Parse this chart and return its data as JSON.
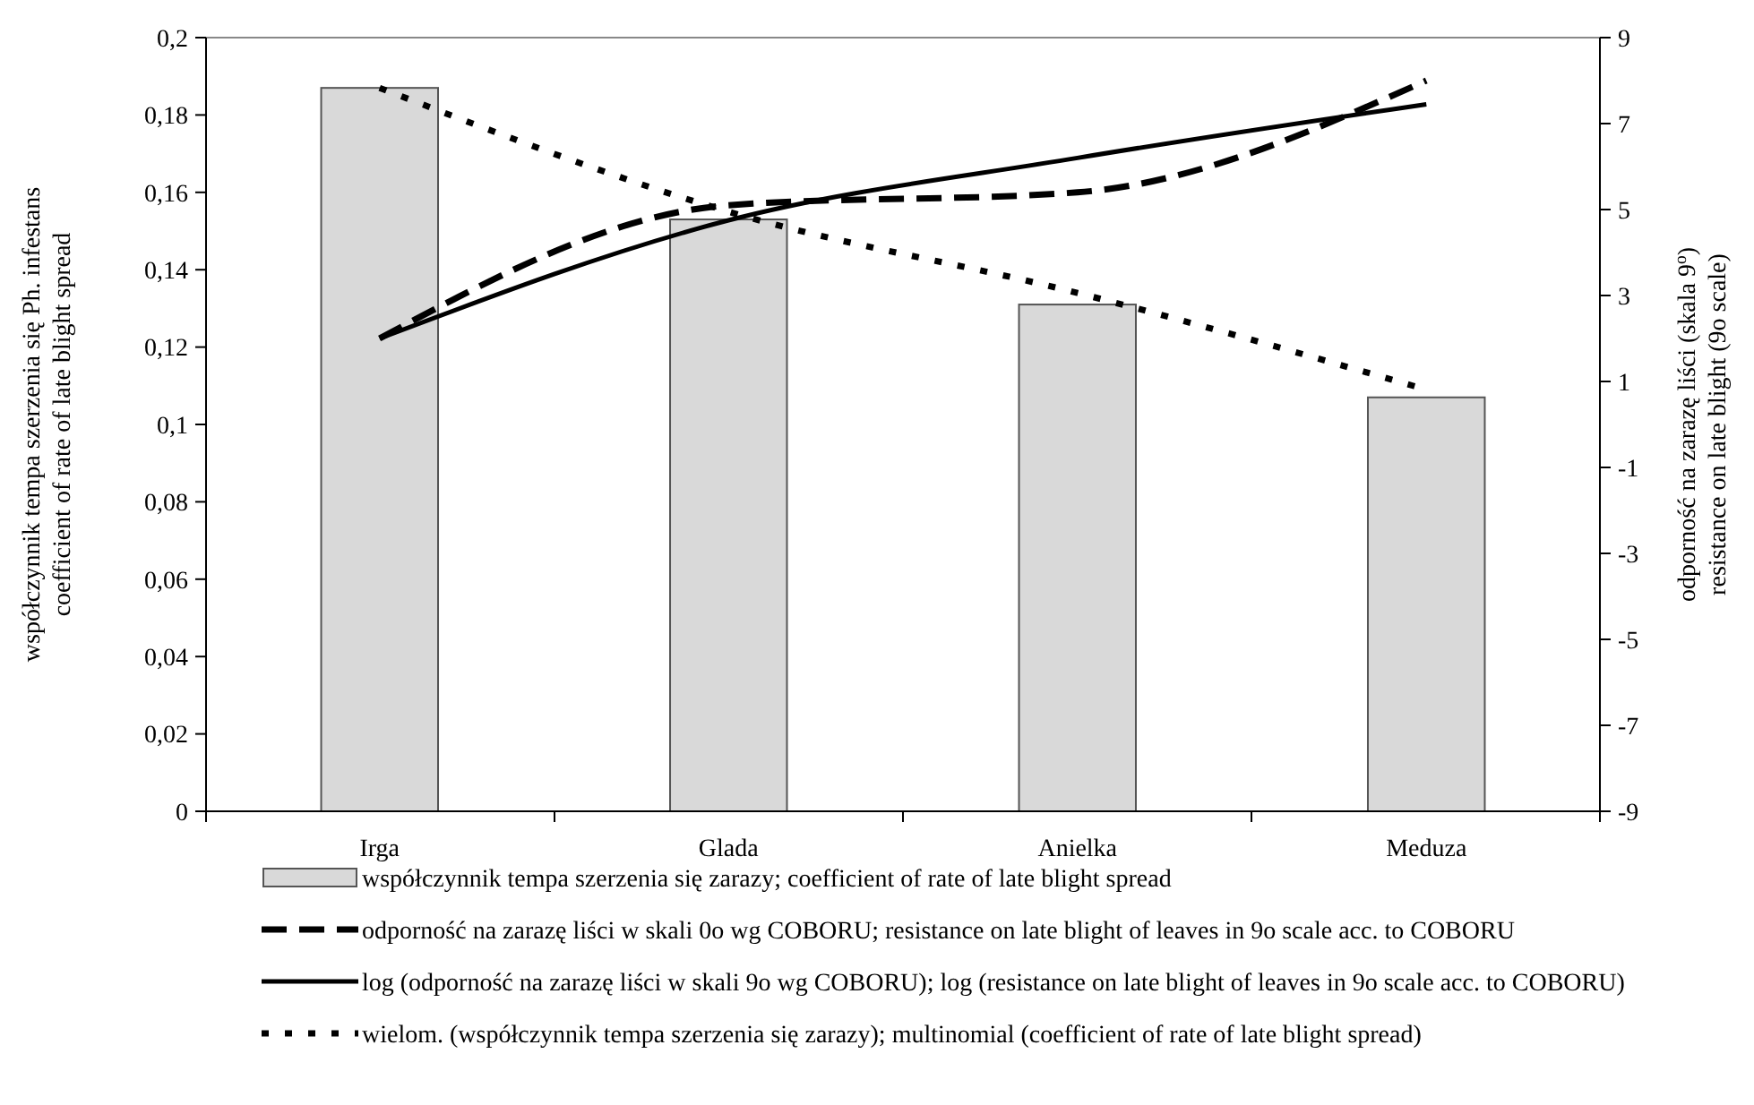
{
  "chart_data": {
    "type": "bar",
    "ylabel": "współczynnik tempa szerzenia się Ph. infestans\ncoefficient of rate of late blight spread",
    "y2label": "odporność na zarazę liści (skala 9$^{o}$)\nresistance on late blight (9o scale)",
    "categories": [
      "Irga",
      "Glada",
      "Anielka",
      "Meduza"
    ],
    "series": [
      {
        "name": "współczynnik tempa szerzenia się zarazy; coefficient of rate of late blight spread",
        "color": "#d9d9d9",
        "values": [
          0.187,
          0.153,
          0.131,
          0.107
        ]
      },
      {
        "name": "odporność na zarazę liści w skali 0o wg COBORU; resistance on late blight of leaves in 9o scale acc. to COBORU",
        "type": "line",
        "axis": "y2",
        "line_style": "dashed",
        "color": "#000000",
        "values": [
          2.0,
          5.1,
          5.4,
          8.0
        ]
      },
      {
        "name": "log (odporność na zarazę liści w skali 9o wg COBORU); log (resistance on late blight of leaves in 9o scale acc. to COBORU)",
        "type": "line",
        "axis": "y2",
        "line_style": "solid",
        "color": "#000000",
        "values": [
          2.0,
          4.75,
          6.2,
          7.45
        ]
      },
      {
        "name": "wielom. (współczynnik tempa szerzenia się zarazy); multinomial (coefficient of rate of late blight spread)",
        "type": "line",
        "line_style": "dotted",
        "color": "#000000",
        "values": [
          0.187,
          0.155,
          0.134,
          0.109
        ]
      }
    ],
    "ylim": [
      0,
      0.2
    ],
    "yticks": [
      0,
      {
        "value": 0.02,
        "label": "0,02"
      },
      {
        "value": 0.04,
        "label": "0,04"
      },
      {
        "value": 0.06,
        "label": "0,06"
      },
      {
        "value": 0.08,
        "label": "0,08"
      },
      {
        "value": 0.1,
        "label": "0,1"
      },
      {
        "value": 0.12,
        "label": "0,12"
      },
      {
        "value": 0.14,
        "label": "0,14"
      },
      {
        "value": 0.16,
        "label": "0,16"
      },
      {
        "value": 0.18,
        "label": "0,18"
      },
      {
        "value": 0.2,
        "label": "0,2"
      }
    ],
    "y2lim": [
      -9,
      9
    ],
    "y2ticks": [
      -9,
      -7,
      -5,
      -3,
      -1,
      1,
      3,
      5,
      7,
      9
    ],
    "marker": "none",
    "legend": "bottom",
    "grid": false
  }
}
